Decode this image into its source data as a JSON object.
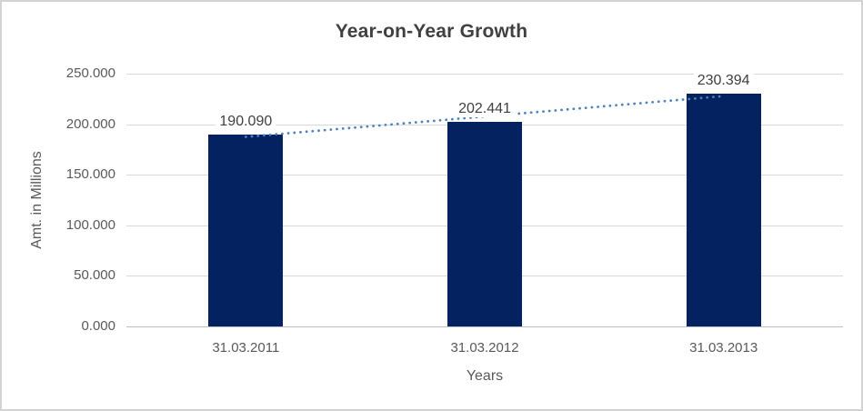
{
  "chart_data": {
    "type": "bar",
    "title": "Year-on-Year Growth",
    "xlabel": "Years",
    "ylabel": "Amt. in Millions",
    "categories": [
      "31.03.2011",
      "31.03.2012",
      "31.03.2013"
    ],
    "values": [
      190090,
      202441,
      230394
    ],
    "value_labels": [
      "190.090",
      "202.441",
      "230.394"
    ],
    "ylim": [
      0,
      250000
    ],
    "yticks": [
      {
        "value": 0,
        "label": "0.000"
      },
      {
        "value": 50000,
        "label": "50.000"
      },
      {
        "value": 100000,
        "label": "100.000"
      },
      {
        "value": 150000,
        "label": "150.000"
      },
      {
        "value": 200000,
        "label": "200.000"
      },
      {
        "value": 250000,
        "label": "250.000"
      }
    ],
    "grid": true,
    "legend": false,
    "trendline": {
      "type": "linear",
      "style": "dotted"
    },
    "colors": {
      "bar": "#042260",
      "trendline": "#4E81BD",
      "gridline": "#D9D9D9",
      "axis_line": "#BFBFBF",
      "title_text": "#404040",
      "tick_text": "#595959",
      "axis_title_text": "#595959",
      "value_label_text": "#404040",
      "chart_border": "#D3D3D3",
      "background": "#FFFFFF"
    }
  }
}
